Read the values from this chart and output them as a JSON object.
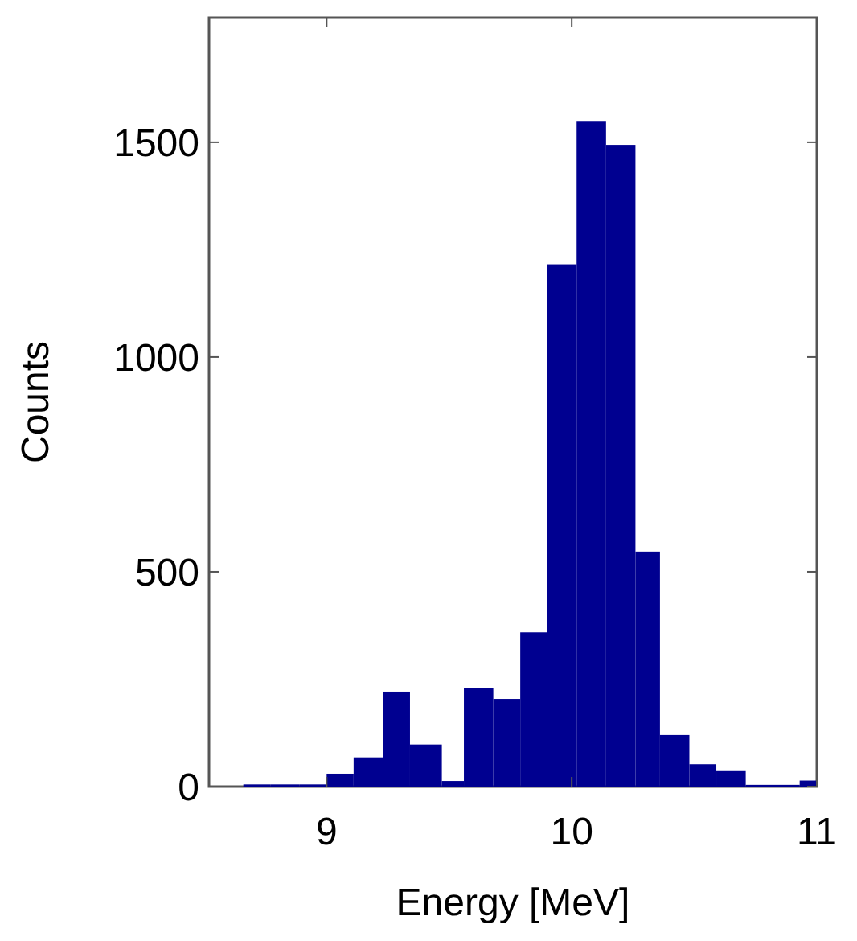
{
  "chart_data": {
    "type": "histogram",
    "xlabel": "Energy [MeV]",
    "ylabel": "Counts",
    "bins": [
      8.66,
      8.77,
      8.89,
      9.0,
      9.11,
      9.23,
      9.34,
      9.47,
      9.56,
      9.68,
      9.79,
      9.9,
      10.02,
      10.14,
      10.26,
      10.36,
      10.48,
      10.59,
      10.71,
      10.82,
      10.93,
      11.0
    ],
    "values": [
      5,
      5,
      5,
      30,
      68,
      221,
      98,
      13,
      230,
      204,
      359,
      1216,
      1548,
      1494,
      547,
      120,
      52,
      36,
      4,
      4,
      14
    ],
    "color": "#000090",
    "xlim": [
      8.52,
      11
    ],
    "xticks": [
      9,
      10,
      11
    ],
    "ylim": [
      0,
      1790
    ],
    "yticks": [
      0,
      500,
      1000,
      1500
    ],
    "grid": false
  }
}
